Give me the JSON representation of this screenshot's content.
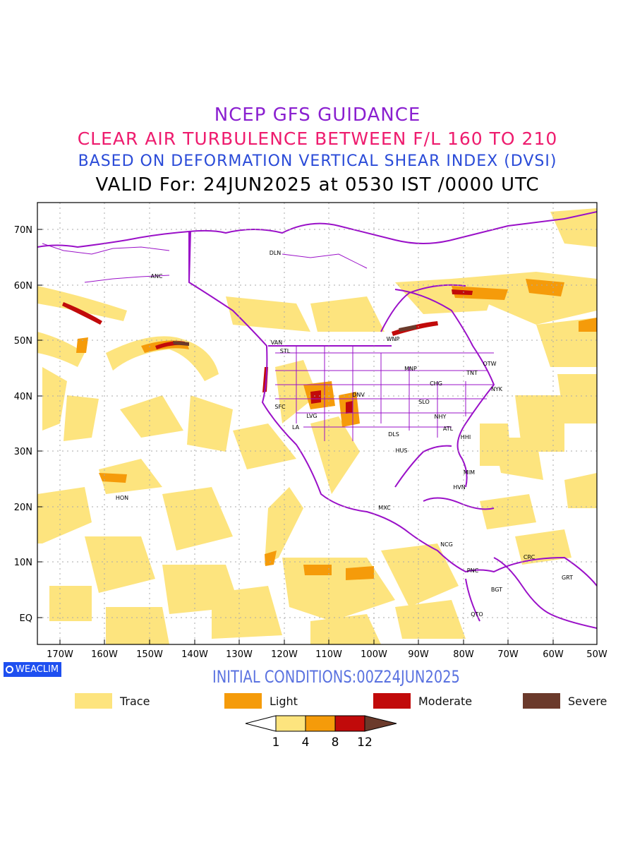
{
  "header": {
    "line1": "NCEP GFS GUIDANCE",
    "line2": "CLEAR AIR TURBULENCE BETWEEN F/L 160 TO 210",
    "line3": "BASED ON DEFORMATION VERTICAL SHEAR INDEX (DVSI)",
    "line4": "VALID For: 24JUN2025 at 0530 IST /0000 UTC"
  },
  "map": {
    "latitude_labels": [
      "70N",
      "60N",
      "50N",
      "40N",
      "30N",
      "20N",
      "10N",
      "EQ"
    ],
    "longitude_labels": [
      "170W",
      "160W",
      "150W",
      "140W",
      "130W",
      "120W",
      "110W",
      "100W",
      "90W",
      "80W",
      "70W",
      "60W",
      "50W"
    ],
    "stations": [
      {
        "code": "DLN"
      },
      {
        "code": "ANC"
      },
      {
        "code": "VAN"
      },
      {
        "code": "STL"
      },
      {
        "code": "WNP"
      },
      {
        "code": "MNP"
      },
      {
        "code": "TNT"
      },
      {
        "code": "OTW"
      },
      {
        "code": "CHG"
      },
      {
        "code": "NYK"
      },
      {
        "code": "DNV"
      },
      {
        "code": "SFC"
      },
      {
        "code": "LVG"
      },
      {
        "code": "SLO"
      },
      {
        "code": "LA"
      },
      {
        "code": "NHY"
      },
      {
        "code": "ATL"
      },
      {
        "code": "DLS"
      },
      {
        "code": "HHI"
      },
      {
        "code": "HUS"
      },
      {
        "code": "MIM"
      },
      {
        "code": "HVN"
      },
      {
        "code": "HON"
      },
      {
        "code": "MXC"
      },
      {
        "code": "NCG"
      },
      {
        "code": "CRC"
      },
      {
        "code": "PNC"
      },
      {
        "code": "GRT"
      },
      {
        "code": "BGT"
      },
      {
        "code": "QTO"
      }
    ]
  },
  "watermark": {
    "text": "WEACLIM",
    "icon": "circle-icon"
  },
  "initial_conditions": "INITIAL CONDITIONS:00Z24JUN2025",
  "legend": [
    {
      "label": "Trace",
      "color": "#fde47e"
    },
    {
      "label": "Light",
      "color": "#f59b0a"
    },
    {
      "label": "Moderate",
      "color": "#c10a0a"
    },
    {
      "label": "Severe",
      "color": "#6b3a2b"
    }
  ],
  "colorbar": {
    "ticks": [
      "1",
      "4",
      "8",
      "12"
    ],
    "colors": [
      "#ffffff",
      "#fde47e",
      "#f59b0a",
      "#c10a0a",
      "#6b3a2b"
    ]
  }
}
